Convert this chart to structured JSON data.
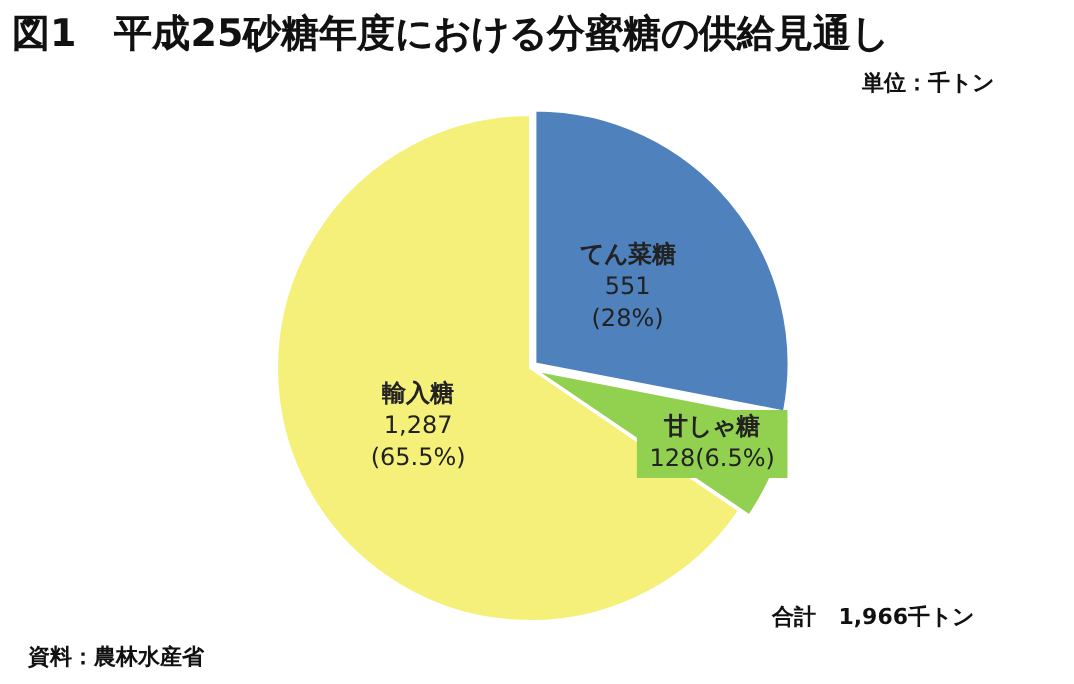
{
  "chart_data": {
    "type": "pie",
    "title": "図1　平成25砂糖年度における分蜜糖の供給見通し",
    "categories": [
      "てん菜糖",
      "甘しゃ糖",
      "輸入糖"
    ],
    "values": [
      551,
      128,
      1287
    ],
    "value_labels": [
      "551\n(28%)",
      "128(6.5%)",
      "1,287\n(65.5%)"
    ],
    "colors": [
      "#4f81bd",
      "#92d050",
      "#f5f07a"
    ],
    "legend": false,
    "annotations": [
      "単位：千トン",
      "合計　1,966千トン",
      "資料：農林水産省"
    ]
  }
}
